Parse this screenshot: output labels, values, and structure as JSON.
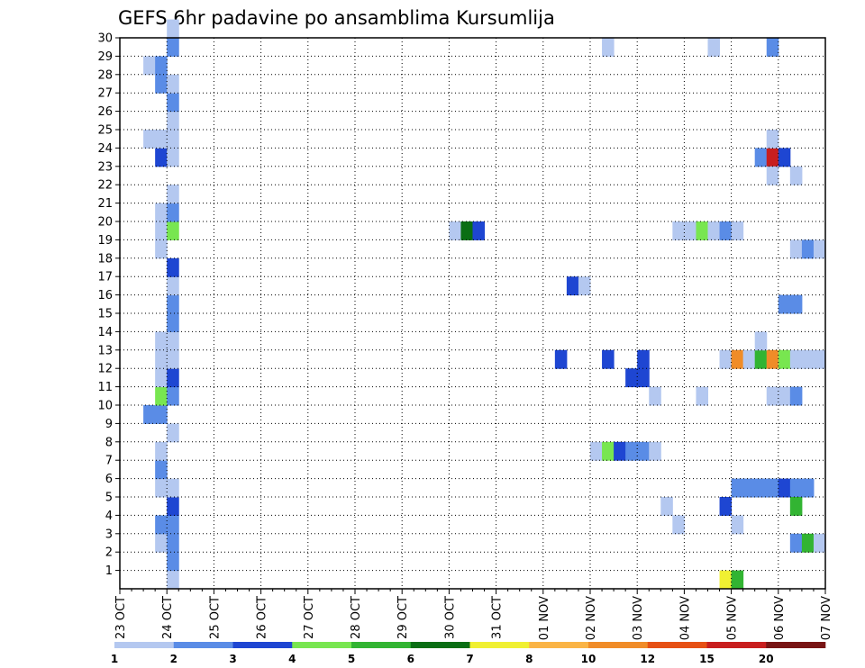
{
  "chart_data": {
    "type": "heatmap",
    "title": "GEFS 6hr padavine po ansamblima Kursumlija",
    "xlabel": "",
    "ylabel": "",
    "x_tick_labels": [
      "23 OCT",
      "24 OCT",
      "25 OCT",
      "26 OCT",
      "27 OCT",
      "28 OCT",
      "29 OCT",
      "30 OCT",
      "31 OCT",
      "01 NOV",
      "02 NOV",
      "03 NOV",
      "04 NOV",
      "05 NOV",
      "06 NOV",
      "07 NOV"
    ],
    "y_ticks": [
      1,
      2,
      3,
      4,
      5,
      6,
      7,
      8,
      9,
      10,
      11,
      12,
      13,
      14,
      15,
      16,
      17,
      18,
      19,
      20,
      21,
      22,
      23,
      24,
      25,
      26,
      27,
      28,
      29,
      30
    ],
    "xlim": [
      0,
      60
    ],
    "ylim": [
      0,
      30
    ],
    "grid": true,
    "legend_position": "bottom",
    "colorbar": {
      "labels": [
        "1",
        "2",
        "3",
        "4",
        "5",
        "6",
        "7",
        "8",
        "10",
        "12",
        "15",
        "20"
      ],
      "colors": [
        "#b4c8f0",
        "#5a8ce6",
        "#1e46d2",
        "#78e650",
        "#32b432",
        "#0a6e14",
        "#f0f032",
        "#fab446",
        "#f08c28",
        "#e65014",
        "#c81e1e",
        "#781414"
      ]
    },
    "note_units": "x = 6-hour step index from 23 OCT 00Z, y = ensemble member, v = colour level index (1-based)",
    "cells": [
      {
        "x": 4,
        "y": 0,
        "v": 1
      },
      {
        "x": 4,
        "y": 1,
        "v": 2
      },
      {
        "x": 3,
        "y": 2,
        "v": 1
      },
      {
        "x": 4,
        "y": 2,
        "v": 2
      },
      {
        "x": 3,
        "y": 3,
        "v": 2
      },
      {
        "x": 4,
        "y": 3,
        "v": 2
      },
      {
        "x": 4,
        "y": 4,
        "v": 3
      },
      {
        "x": 3,
        "y": 5,
        "v": 1
      },
      {
        "x": 4,
        "y": 5,
        "v": 1
      },
      {
        "x": 3,
        "y": 6,
        "v": 2
      },
      {
        "x": 3,
        "y": 7,
        "v": 1
      },
      {
        "x": 4,
        "y": 8,
        "v": 1
      },
      {
        "x": 2,
        "y": 9,
        "v": 2
      },
      {
        "x": 3,
        "y": 9,
        "v": 2
      },
      {
        "x": 3,
        "y": 10,
        "v": 4
      },
      {
        "x": 4,
        "y": 10,
        "v": 2
      },
      {
        "x": 3,
        "y": 11,
        "v": 1
      },
      {
        "x": 4,
        "y": 11,
        "v": 3
      },
      {
        "x": 3,
        "y": 12,
        "v": 1
      },
      {
        "x": 4,
        "y": 12,
        "v": 1
      },
      {
        "x": 3,
        "y": 13,
        "v": 1
      },
      {
        "x": 4,
        "y": 13,
        "v": 1
      },
      {
        "x": 4,
        "y": 14,
        "v": 2
      },
      {
        "x": 4,
        "y": 15,
        "v": 2
      },
      {
        "x": 4,
        "y": 16,
        "v": 1
      },
      {
        "x": 4,
        "y": 17,
        "v": 3
      },
      {
        "x": 3,
        "y": 18,
        "v": 1
      },
      {
        "x": 3,
        "y": 19,
        "v": 1
      },
      {
        "x": 4,
        "y": 19,
        "v": 4
      },
      {
        "x": 3,
        "y": 20,
        "v": 1
      },
      {
        "x": 4,
        "y": 20,
        "v": 2
      },
      {
        "x": 4,
        "y": 21,
        "v": 1
      },
      {
        "x": 3,
        "y": 23,
        "v": 3
      },
      {
        "x": 4,
        "y": 23,
        "v": 1
      },
      {
        "x": 2,
        "y": 24,
        "v": 1
      },
      {
        "x": 3,
        "y": 24,
        "v": 1
      },
      {
        "x": 4,
        "y": 24,
        "v": 1
      },
      {
        "x": 4,
        "y": 25,
        "v": 1
      },
      {
        "x": 4,
        "y": 26,
        "v": 2
      },
      {
        "x": 3,
        "y": 27,
        "v": 2
      },
      {
        "x": 4,
        "y": 27,
        "v": 1
      },
      {
        "x": 2,
        "y": 28,
        "v": 1
      },
      {
        "x": 3,
        "y": 28,
        "v": 2
      },
      {
        "x": 4,
        "y": 29,
        "v": 2
      },
      {
        "x": 4,
        "y": 30,
        "v": 1
      },
      {
        "x": 28,
        "y": 19,
        "v": 1
      },
      {
        "x": 29,
        "y": 19,
        "v": 6
      },
      {
        "x": 30,
        "y": 19,
        "v": 3
      },
      {
        "x": 37,
        "y": 12,
        "v": 3
      },
      {
        "x": 38,
        "y": 16,
        "v": 3
      },
      {
        "x": 39,
        "y": 16,
        "v": 1
      },
      {
        "x": 41,
        "y": 29,
        "v": 1
      },
      {
        "x": 40,
        "y": 7,
        "v": 1
      },
      {
        "x": 41,
        "y": 7,
        "v": 4
      },
      {
        "x": 42,
        "y": 7,
        "v": 3
      },
      {
        "x": 43,
        "y": 7,
        "v": 2
      },
      {
        "x": 44,
        "y": 7,
        "v": 2
      },
      {
        "x": 45,
        "y": 7,
        "v": 1
      },
      {
        "x": 41,
        "y": 12,
        "v": 3
      },
      {
        "x": 44,
        "y": 12,
        "v": 3
      },
      {
        "x": 43,
        "y": 11,
        "v": 3
      },
      {
        "x": 44,
        "y": 11,
        "v": 3
      },
      {
        "x": 45,
        "y": 10,
        "v": 1
      },
      {
        "x": 46,
        "y": 4,
        "v": 1
      },
      {
        "x": 47,
        "y": 3,
        "v": 1
      },
      {
        "x": 47,
        "y": 19,
        "v": 1
      },
      {
        "x": 48,
        "y": 19,
        "v": 1
      },
      {
        "x": 49,
        "y": 19,
        "v": 4
      },
      {
        "x": 50,
        "y": 19,
        "v": 1
      },
      {
        "x": 51,
        "y": 19,
        "v": 2
      },
      {
        "x": 52,
        "y": 19,
        "v": 1
      },
      {
        "x": 49,
        "y": 10,
        "v": 1
      },
      {
        "x": 50,
        "y": 29,
        "v": 1
      },
      {
        "x": 51,
        "y": 4,
        "v": 3
      },
      {
        "x": 52,
        "y": 3,
        "v": 1
      },
      {
        "x": 51,
        "y": 0,
        "v": 7
      },
      {
        "x": 52,
        "y": 0,
        "v": 5
      },
      {
        "x": 51,
        "y": 12,
        "v": 1
      },
      {
        "x": 52,
        "y": 12,
        "v": 9
      },
      {
        "x": 53,
        "y": 12,
        "v": 1
      },
      {
        "x": 54,
        "y": 12,
        "v": 5
      },
      {
        "x": 55,
        "y": 12,
        "v": 9
      },
      {
        "x": 56,
        "y": 12,
        "v": 4
      },
      {
        "x": 57,
        "y": 12,
        "v": 1
      },
      {
        "x": 58,
        "y": 12,
        "v": 1
      },
      {
        "x": 59,
        "y": 12,
        "v": 1
      },
      {
        "x": 54,
        "y": 13,
        "v": 1
      },
      {
        "x": 52,
        "y": 5,
        "v": 2
      },
      {
        "x": 53,
        "y": 5,
        "v": 2
      },
      {
        "x": 54,
        "y": 5,
        "v": 2
      },
      {
        "x": 55,
        "y": 5,
        "v": 2
      },
      {
        "x": 56,
        "y": 5,
        "v": 3
      },
      {
        "x": 57,
        "y": 5,
        "v": 2
      },
      {
        "x": 58,
        "y": 5,
        "v": 2
      },
      {
        "x": 54,
        "y": 23,
        "v": 2
      },
      {
        "x": 55,
        "y": 23,
        "v": 11
      },
      {
        "x": 56,
        "y": 23,
        "v": 3
      },
      {
        "x": 55,
        "y": 24,
        "v": 1
      },
      {
        "x": 55,
        "y": 22,
        "v": 1
      },
      {
        "x": 57,
        "y": 22,
        "v": 1
      },
      {
        "x": 55,
        "y": 29,
        "v": 2
      },
      {
        "x": 55,
        "y": 10,
        "v": 1
      },
      {
        "x": 56,
        "y": 10,
        "v": 1
      },
      {
        "x": 57,
        "y": 10,
        "v": 2
      },
      {
        "x": 56,
        "y": 15,
        "v": 2
      },
      {
        "x": 57,
        "y": 15,
        "v": 2
      },
      {
        "x": 57,
        "y": 18,
        "v": 1
      },
      {
        "x": 58,
        "y": 18,
        "v": 2
      },
      {
        "x": 59,
        "y": 18,
        "v": 1
      },
      {
        "x": 57,
        "y": 4,
        "v": 5
      },
      {
        "x": 57,
        "y": 2,
        "v": 2
      },
      {
        "x": 58,
        "y": 2,
        "v": 5
      },
      {
        "x": 59,
        "y": 2,
        "v": 1
      }
    ]
  }
}
